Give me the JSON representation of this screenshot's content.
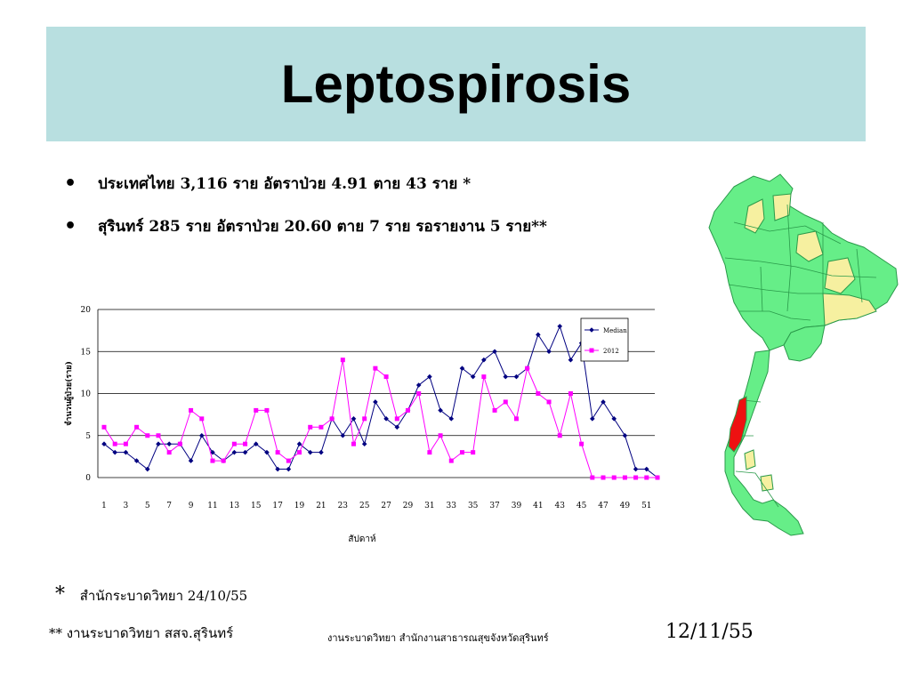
{
  "slide": {
    "title": "Leptospirosis",
    "bullets": [
      {
        "text": "ประเทศไทย 3,116 ราย อัตราป่วย 4.91  ตาย 43 ราย *"
      },
      {
        "text": "สุรินทร์  285 ราย อัตราป่วย  20.60  ตาย 7  ราย รอรายงาน 5 ราย**"
      }
    ],
    "bullet_glyph": "•",
    "footnotes": {
      "note1_star": "*",
      "note1": "สำนักระบาดวิทยา 24/10/55",
      "note2": "** งานระบาดวิทยา สสจ.สุรินทร์",
      "center": "งานระบาดวิทยา สำนักงานสาธารณสุขจังหวัดสุรินทร์",
      "date": "12/11/55"
    },
    "colors": {
      "title_band": "#b8dfe0",
      "median_series": "#000080",
      "series_2012": "#ff00ff",
      "map_green": "#66ee88",
      "map_yellow": "#f6f0a0",
      "map_red": "#ee1111"
    }
  },
  "map": {
    "icon": "thailand-province-map"
  },
  "chart_data": {
    "type": "line",
    "xlabel": "สัปดาห์",
    "ylabel": "จำนวนผู้ป่วย(ราย)",
    "ylim": [
      0,
      20
    ],
    "yticks": [
      0,
      5,
      10,
      15,
      20
    ],
    "xticks": [
      1,
      3,
      5,
      7,
      9,
      11,
      13,
      15,
      17,
      19,
      21,
      23,
      25,
      27,
      29,
      31,
      33,
      35,
      37,
      39,
      41,
      43,
      45,
      47,
      49,
      51
    ],
    "x": [
      1,
      2,
      3,
      4,
      5,
      6,
      7,
      8,
      9,
      10,
      11,
      12,
      13,
      14,
      15,
      16,
      17,
      18,
      19,
      20,
      21,
      22,
      23,
      24,
      25,
      26,
      27,
      28,
      29,
      30,
      31,
      32,
      33,
      34,
      35,
      36,
      37,
      38,
      39,
      40,
      41,
      42,
      43,
      44,
      45,
      46,
      47,
      48,
      49,
      50,
      51,
      52
    ],
    "series": [
      {
        "name": "Median",
        "values": [
          4,
          3,
          3,
          2,
          1,
          4,
          4,
          4,
          2,
          5,
          3,
          2,
          3,
          3,
          4,
          3,
          1,
          1,
          4,
          3,
          3,
          7,
          5,
          7,
          4,
          9,
          7,
          6,
          8,
          11,
          12,
          8,
          7,
          13,
          12,
          14,
          15,
          12,
          12,
          13,
          17,
          15,
          18,
          14,
          16,
          7,
          9,
          7,
          5,
          1,
          1,
          0
        ]
      },
      {
        "name": "2012",
        "values": [
          6,
          4,
          4,
          6,
          5,
          5,
          3,
          4,
          8,
          7,
          2,
          2,
          4,
          4,
          8,
          8,
          3,
          2,
          3,
          6,
          6,
          7,
          14,
          4,
          7,
          13,
          12,
          7,
          8,
          10,
          3,
          5,
          2,
          3,
          3,
          12,
          8,
          9,
          7,
          13,
          10,
          9,
          5,
          10,
          4,
          0,
          0,
          0,
          0,
          0,
          0,
          0
        ]
      }
    ],
    "legend_position": "top-right",
    "grid": true
  }
}
